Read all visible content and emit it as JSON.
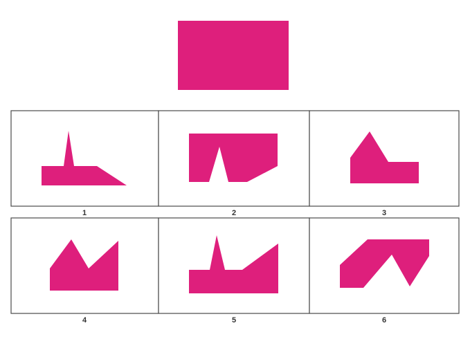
{
  "colors": {
    "shape": "#de1f7c",
    "border": "#4a4a4a",
    "label": "#333333"
  },
  "target": {
    "name": "target-rectangle"
  },
  "options": [
    {
      "label": "1"
    },
    {
      "label": "2"
    },
    {
      "label": "3"
    },
    {
      "label": "4"
    },
    {
      "label": "5"
    },
    {
      "label": "6"
    }
  ]
}
